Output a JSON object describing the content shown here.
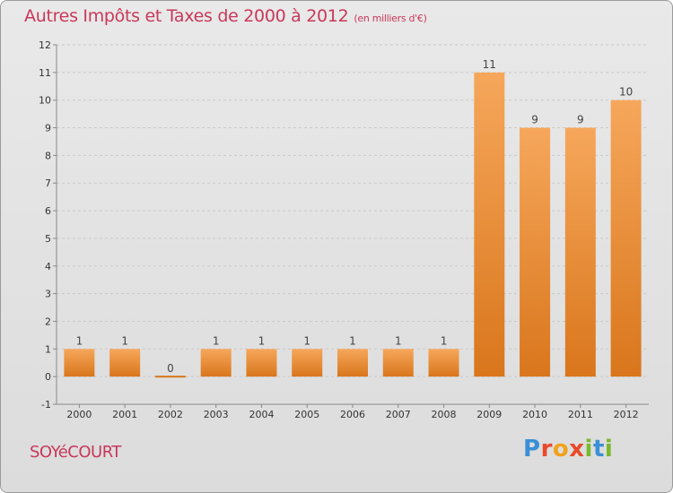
{
  "title": {
    "main": "Autres Impôts et Taxes de 2000 à 2012",
    "unit": "(en milliers d'€)"
  },
  "place_name": "SOYéCOURT",
  "logo": {
    "letters": [
      "P",
      "r",
      "o",
      "x",
      "i",
      "t",
      "i"
    ],
    "colors": [
      "#3a8fd6",
      "#e84a2a",
      "#f2a21b",
      "#e84a2a",
      "#7ab82c",
      "#3a8fd6",
      "#7ab82c"
    ]
  },
  "colors": {
    "bar_light": "#f6a75b",
    "bar_dark": "#d9761c",
    "title": "#c8385a",
    "grid": "#c9c9c9",
    "axis": "#888888"
  },
  "chart_data": {
    "type": "bar",
    "categories": [
      "2000",
      "2001",
      "2002",
      "2003",
      "2004",
      "2005",
      "2006",
      "2007",
      "2008",
      "2009",
      "2010",
      "2011",
      "2012"
    ],
    "values": [
      1,
      1,
      0,
      1,
      1,
      1,
      1,
      1,
      1,
      11,
      9,
      9,
      10
    ],
    "data_labels": [
      "1",
      "1",
      "0",
      "1",
      "1",
      "1",
      "1",
      "1",
      "1",
      "11",
      "9",
      "9",
      "10"
    ],
    "yticks": [
      "-1",
      "0",
      "1",
      "2",
      "3",
      "4",
      "5",
      "6",
      "7",
      "8",
      "9",
      "10",
      "11",
      "12"
    ],
    "ylim": [
      -1,
      12
    ],
    "grid": "horizontal dashed",
    "title": "Autres Impôts et Taxes de 2000 à 2012",
    "xlabel": "",
    "ylabel": ""
  }
}
